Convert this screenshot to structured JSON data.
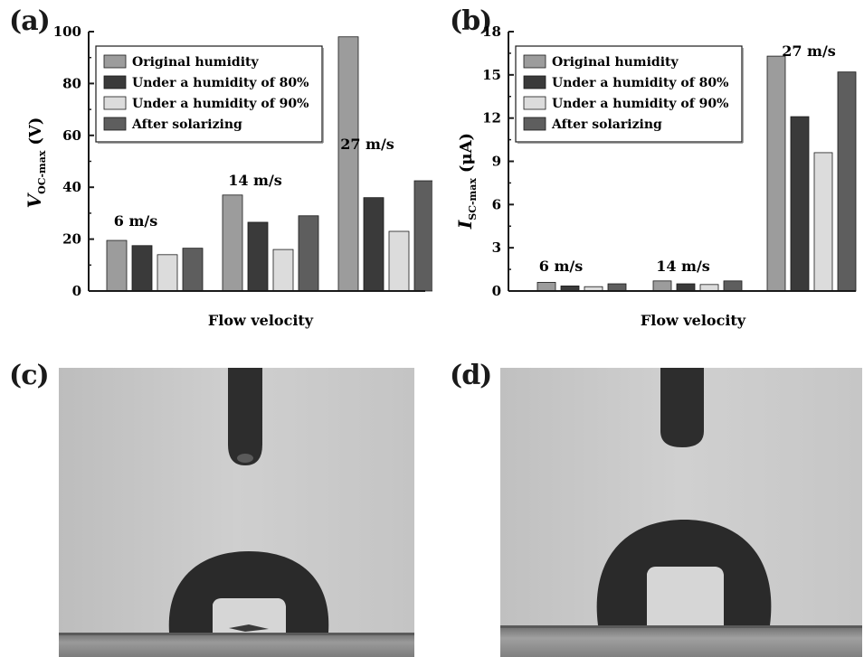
{
  "panels": {
    "a": "(a)",
    "b": "(b)",
    "c": "(c)",
    "d": "(d)"
  },
  "colors": {
    "original": "#9c9c9c",
    "humidity80": "#3a3a3a",
    "humidity90": "#dcdcdc",
    "solarizing": "#5e5e5e",
    "axis": "#1a1a1a",
    "photo_bg": "#c9c9c9",
    "droplet": "#2b2b2b",
    "substrate": "#8a8a8a"
  },
  "chart_data": [
    {
      "type": "bar",
      "panel": "a",
      "categories": [
        "6 m/s",
        "14 m/s",
        "27 m/s"
      ],
      "series": [
        {
          "name": "Original humidity",
          "values": [
            19.5,
            37,
            98
          ]
        },
        {
          "name": "Under a humidity of 80%",
          "values": [
            17.5,
            26.5,
            36
          ]
        },
        {
          "name": "Under a humidity of 90%",
          "values": [
            14,
            16,
            23
          ]
        },
        {
          "name": "After solarizing",
          "values": [
            16.5,
            29,
            42.5
          ]
        }
      ],
      "ylabel_main": "V",
      "ylabel_sub": "OC-max",
      "ylabel_unit": "(V)",
      "xlabel": "Flow velocity",
      "ylim": [
        0,
        100
      ],
      "yticks": [
        "0",
        "20",
        "40",
        "60",
        "80",
        "100"
      ],
      "legend": "top-left",
      "grid": false
    },
    {
      "type": "bar",
      "panel": "b",
      "categories": [
        "6 m/s",
        "14 m/s",
        "27 m/s"
      ],
      "series": [
        {
          "name": "Original humidity",
          "values": [
            0.6,
            0.7,
            16.3
          ]
        },
        {
          "name": "Under a humidity of 80%",
          "values": [
            0.35,
            0.5,
            12.1
          ]
        },
        {
          "name": "Under a humidity of 90%",
          "values": [
            0.3,
            0.45,
            9.6
          ]
        },
        {
          "name": "After solarizing",
          "values": [
            0.5,
            0.7,
            15.2
          ]
        }
      ],
      "ylabel_main": "I",
      "ylabel_sub": "SC-max",
      "ylabel_unit": "(μA)",
      "xlabel": "Flow velocity",
      "ylim": [
        0,
        18
      ],
      "yticks": [
        "0",
        "3",
        "6",
        "9",
        "12",
        "15",
        "18"
      ],
      "legend": "top-left",
      "grid": false
    }
  ]
}
